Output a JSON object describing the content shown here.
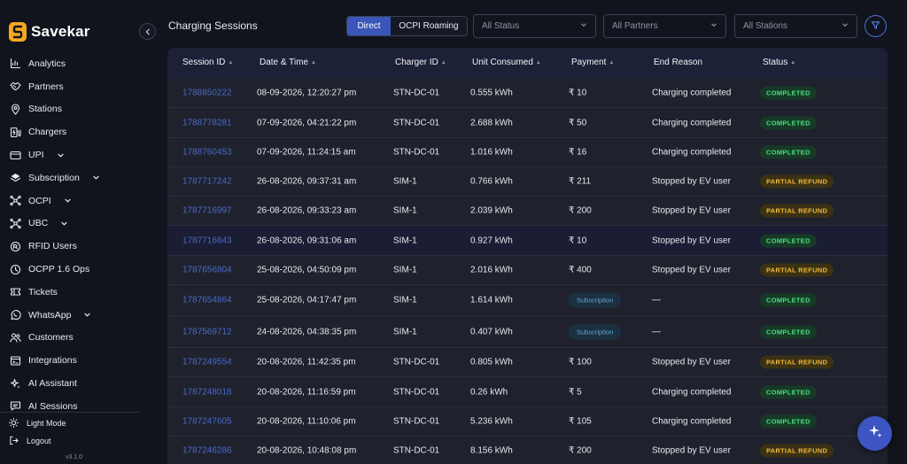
{
  "brand": {
    "name": "Savekar",
    "accent": "#f5a623"
  },
  "sidebar": {
    "items": [
      {
        "label": "Analytics",
        "icon": "analytics-icon",
        "expandable": false
      },
      {
        "label": "Partners",
        "icon": "handshake-icon",
        "expandable": false
      },
      {
        "label": "Stations",
        "icon": "map-pin-icon",
        "expandable": false
      },
      {
        "label": "Chargers",
        "icon": "charger-icon",
        "expandable": false
      },
      {
        "label": "UPI",
        "icon": "card-icon",
        "expandable": true
      },
      {
        "label": "Subscription",
        "icon": "subscription-icon",
        "expandable": true
      },
      {
        "label": "OCPI",
        "icon": "network-icon",
        "expandable": true
      },
      {
        "label": "UBC",
        "icon": "network-icon",
        "expandable": true
      },
      {
        "label": "RFID Users",
        "icon": "rfid-icon",
        "expandable": false
      },
      {
        "label": "OCPP 1.6 Ops",
        "icon": "ops-icon",
        "expandable": false
      },
      {
        "label": "Tickets",
        "icon": "ticket-icon",
        "expandable": false
      },
      {
        "label": "WhatsApp",
        "icon": "whatsapp-icon",
        "expandable": true
      },
      {
        "label": "Customers",
        "icon": "users-icon",
        "expandable": false
      },
      {
        "label": "Integrations",
        "icon": "integrations-icon",
        "expandable": false
      },
      {
        "label": "AI Assistant",
        "icon": "sparkle-icon",
        "expandable": false
      },
      {
        "label": "AI Sessions",
        "icon": "chat-icon",
        "expandable": false
      }
    ],
    "light_mode_label": "Light Mode",
    "logout_label": "Logout",
    "version": "v3.1.0"
  },
  "header": {
    "title": "Charging Sessions",
    "mode_tabs": [
      {
        "label": "Direct",
        "active": true
      },
      {
        "label": "OCPI Roaming",
        "active": false
      }
    ],
    "filters": {
      "status": "All Status",
      "partners": "All Partners",
      "stations": "All Stations"
    }
  },
  "table": {
    "columns": [
      {
        "label": "Session ID",
        "sortable": true
      },
      {
        "label": "Date & Time",
        "sortable": true
      },
      {
        "label": "Charger ID",
        "sortable": true
      },
      {
        "label": "Unit Consumed",
        "sortable": true
      },
      {
        "label": "Payment",
        "sortable": true
      },
      {
        "label": "End Reason",
        "sortable": false
      },
      {
        "label": "Status",
        "sortable": true
      }
    ],
    "rows": [
      {
        "session_id": "1788850222",
        "datetime": "08-09-2026, 12:20:27 pm",
        "charger": "STN-DC-01",
        "units": "0.555 kWh",
        "payment": "₹ 10",
        "payment_type": "amount",
        "end_reason": "Charging completed",
        "status": "COMPLETED",
        "status_type": "completed",
        "highlight": false
      },
      {
        "session_id": "1788778281",
        "datetime": "07-09-2026, 04:21:22 pm",
        "charger": "STN-DC-01",
        "units": "2.688 kWh",
        "payment": "₹ 50",
        "payment_type": "amount",
        "end_reason": "Charging completed",
        "status": "COMPLETED",
        "status_type": "completed",
        "highlight": false
      },
      {
        "session_id": "1788760453",
        "datetime": "07-09-2026, 11:24:15 am",
        "charger": "STN-DC-01",
        "units": "1.016 kWh",
        "payment": "₹ 16",
        "payment_type": "amount",
        "end_reason": "Charging completed",
        "status": "COMPLETED",
        "status_type": "completed",
        "highlight": false
      },
      {
        "session_id": "1787717242",
        "datetime": "26-08-2026, 09:37:31 am",
        "charger": "SIM-1",
        "units": "0.766 kWh",
        "payment": "₹ 211",
        "payment_type": "amount",
        "end_reason": "Stopped by EV user",
        "status": "PARTIAL REFUND",
        "status_type": "partial",
        "highlight": false
      },
      {
        "session_id": "1787716997",
        "datetime": "26-08-2026, 09:33:23 am",
        "charger": "SIM-1",
        "units": "2.039 kWh",
        "payment": "₹ 200",
        "payment_type": "amount",
        "end_reason": "Stopped by EV user",
        "status": "PARTIAL REFUND",
        "status_type": "partial",
        "highlight": false
      },
      {
        "session_id": "1787716843",
        "datetime": "26-08-2026, 09:31:06 am",
        "charger": "SIM-1",
        "units": "0.927 kWh",
        "payment": "₹ 10",
        "payment_type": "amount",
        "end_reason": "Stopped by EV user",
        "status": "COMPLETED",
        "status_type": "completed",
        "highlight": true
      },
      {
        "session_id": "1787656804",
        "datetime": "25-08-2026, 04:50:09 pm",
        "charger": "SIM-1",
        "units": "2.016 kWh",
        "payment": "₹ 400",
        "payment_type": "amount",
        "end_reason": "Stopped by EV user",
        "status": "PARTIAL REFUND",
        "status_type": "partial",
        "highlight": false
      },
      {
        "session_id": "1787654864",
        "datetime": "25-08-2026, 04:17:47 pm",
        "charger": "SIM-1",
        "units": "1.614 kWh",
        "payment": "Subscription",
        "payment_type": "subscription",
        "end_reason": "—",
        "status": "COMPLETED",
        "status_type": "completed",
        "highlight": false
      },
      {
        "session_id": "1787569712",
        "datetime": "24-08-2026, 04:38:35 pm",
        "charger": "SIM-1",
        "units": "0.407 kWh",
        "payment": "Subscription",
        "payment_type": "subscription",
        "end_reason": "—",
        "status": "COMPLETED",
        "status_type": "completed",
        "highlight": false
      },
      {
        "session_id": "1787249554",
        "datetime": "20-08-2026, 11:42:35 pm",
        "charger": "STN-DC-01",
        "units": "0.805 kWh",
        "payment": "₹ 100",
        "payment_type": "amount",
        "end_reason": "Stopped by EV user",
        "status": "PARTIAL REFUND",
        "status_type": "partial",
        "highlight": false
      },
      {
        "session_id": "1787248018",
        "datetime": "20-08-2026, 11:16:59 pm",
        "charger": "STN-DC-01",
        "units": "0.26 kWh",
        "payment": "₹ 5",
        "payment_type": "amount",
        "end_reason": "Charging completed",
        "status": "COMPLETED",
        "status_type": "completed",
        "highlight": false
      },
      {
        "session_id": "1787247605",
        "datetime": "20-08-2026, 11:10:06 pm",
        "charger": "STN-DC-01",
        "units": "5.236 kWh",
        "payment": "₹ 105",
        "payment_type": "amount",
        "end_reason": "Charging completed",
        "status": "COMPLETED",
        "status_type": "completed",
        "highlight": false
      },
      {
        "session_id": "1787246286",
        "datetime": "20-08-2026, 10:48:08 pm",
        "charger": "STN-DC-01",
        "units": "8.156 kWh",
        "payment": "₹ 200",
        "payment_type": "amount",
        "end_reason": "Stopped by EV user",
        "status": "PARTIAL REFUND",
        "status_type": "partial",
        "highlight": false
      }
    ]
  },
  "fab": {
    "icon": "sparkle-icon"
  }
}
